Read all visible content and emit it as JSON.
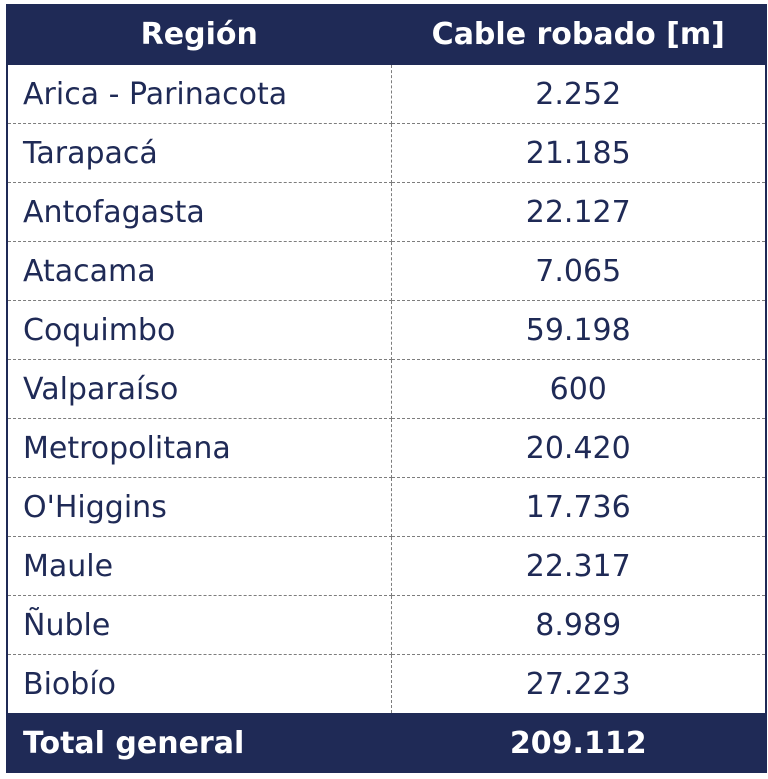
{
  "chart_data": {
    "type": "table",
    "columns": [
      "Región",
      "Cable robado [m]"
    ],
    "rows": [
      {
        "region": "Arica - Parinacota",
        "value": "2.252"
      },
      {
        "region": "Tarapacá",
        "value": "21.185"
      },
      {
        "region": "Antofagasta",
        "value": "22.127"
      },
      {
        "region": "Atacama",
        "value": "7.065"
      },
      {
        "region": "Coquimbo",
        "value": "59.198"
      },
      {
        "region": "Valparaíso",
        "value": "600"
      },
      {
        "region": "Metropolitana",
        "value": "20.420"
      },
      {
        "region": "O'Higgins",
        "value": "17.736"
      },
      {
        "region": "Maule",
        "value": "22.317"
      },
      {
        "region": "Ñuble",
        "value": "8.989"
      },
      {
        "region": "Biobío",
        "value": "27.223"
      }
    ],
    "total": {
      "label": "Total general",
      "value": "209.112"
    }
  },
  "colors": {
    "header_bg": "#1f2a56",
    "header_text": "#ffffff",
    "body_text": "#1f2a56",
    "grid": "#7d7d7d"
  }
}
